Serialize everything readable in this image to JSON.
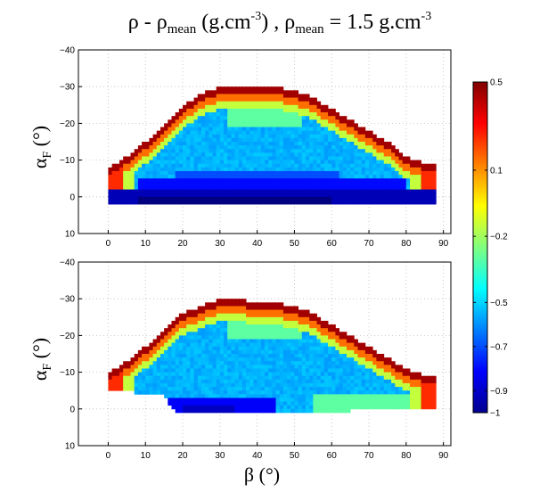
{
  "chart_data": [
    {
      "type": "heatmap",
      "title_parts": [
        "ρ - ",
        "ρ",
        "mean",
        " (g.cm",
        "-3",
        ")  ,  ",
        "ρ",
        "mean",
        " = 1.5 g.cm",
        "-3"
      ],
      "xlabel_main": "β (°)",
      "ylabel_parts": [
        "α",
        "F",
        " (°)"
      ],
      "panels": [
        {
          "name": "top",
          "xlim": [
            -8,
            92
          ],
          "ylim": [
            -40,
            10
          ],
          "xticks": [
            "0",
            "10",
            "20",
            "30",
            "40",
            "50",
            "60",
            "70",
            "80",
            "90"
          ],
          "xtick_values": [
            0,
            10,
            20,
            30,
            40,
            50,
            60,
            70,
            80,
            90
          ],
          "yticks": [
            "−40",
            "−30",
            "−20",
            "−10",
            "0",
            "10"
          ],
          "ytick_values": [
            -40,
            -30,
            -20,
            -10,
            0,
            10
          ],
          "grid": true,
          "boundary_top": [
            [
              0,
              -8
            ],
            [
              5,
              -11
            ],
            [
              10,
              -15
            ],
            [
              15,
              -20
            ],
            [
              20,
              -25
            ],
            [
              25,
              -28
            ],
            [
              30,
              -30
            ],
            [
              35,
              -30
            ],
            [
              40,
              -30
            ],
            [
              45,
              -30
            ],
            [
              50,
              -29
            ],
            [
              55,
              -27
            ],
            [
              60,
              -24
            ],
            [
              65,
              -21
            ],
            [
              70,
              -18
            ],
            [
              75,
              -15
            ],
            [
              80,
              -11
            ],
            [
              85,
              -9
            ],
            [
              88,
              -9
            ]
          ],
          "boundary_bottom": [
            [
              0,
              2
            ],
            [
              15,
              2
            ],
            [
              20,
              2
            ],
            [
              30,
              2
            ],
            [
              40,
              2
            ],
            [
              50,
              2
            ],
            [
              60,
              2
            ],
            [
              70,
              2
            ],
            [
              80,
              2
            ],
            [
              88,
              2
            ]
          ],
          "value_field": "top"
        },
        {
          "name": "bottom",
          "xlim": [
            -8,
            92
          ],
          "ylim": [
            -40,
            10
          ],
          "xticks": [
            "0",
            "10",
            "20",
            "30",
            "40",
            "50",
            "60",
            "70",
            "80",
            "90"
          ],
          "xtick_values": [
            0,
            10,
            20,
            30,
            40,
            50,
            60,
            70,
            80,
            90
          ],
          "yticks": [
            "−40",
            "−30",
            "−20",
            "−10",
            "0",
            "10"
          ],
          "ytick_values": [
            -40,
            -30,
            -20,
            -10,
            0,
            10
          ],
          "grid": true,
          "boundary_top": [
            [
              0,
              -10
            ],
            [
              5,
              -13
            ],
            [
              10,
              -17
            ],
            [
              15,
              -22
            ],
            [
              20,
              -26
            ],
            [
              25,
              -28
            ],
            [
              30,
              -30
            ],
            [
              35,
              -30
            ],
            [
              40,
              -29
            ],
            [
              45,
              -29
            ],
            [
              50,
              -28
            ],
            [
              55,
              -26
            ],
            [
              60,
              -23
            ],
            [
              65,
              -20
            ],
            [
              70,
              -17
            ],
            [
              75,
              -14
            ],
            [
              80,
              -11
            ],
            [
              85,
              -9
            ],
            [
              88,
              -9
            ]
          ],
          "boundary_bottom": [
            [
              0,
              -5
            ],
            [
              5,
              -5
            ],
            [
              10,
              -4
            ],
            [
              15,
              -4
            ],
            [
              18,
              1
            ],
            [
              25,
              1
            ],
            [
              30,
              1
            ],
            [
              40,
              1
            ],
            [
              50,
              1
            ],
            [
              60,
              1
            ],
            [
              70,
              0
            ],
            [
              80,
              0
            ],
            [
              88,
              0
            ]
          ],
          "value_field": "bottom"
        }
      ],
      "colorbar": {
        "range": [
          -1,
          0.5
        ],
        "ticks": [
          "0.5",
          "0.1",
          "−0.2",
          "−0.5",
          "−0.7",
          "−0.9",
          "−1"
        ],
        "tick_values": [
          0.5,
          0.1,
          -0.2,
          -0.5,
          -0.7,
          -0.9,
          -1
        ],
        "colormap": "jet"
      }
    }
  ]
}
